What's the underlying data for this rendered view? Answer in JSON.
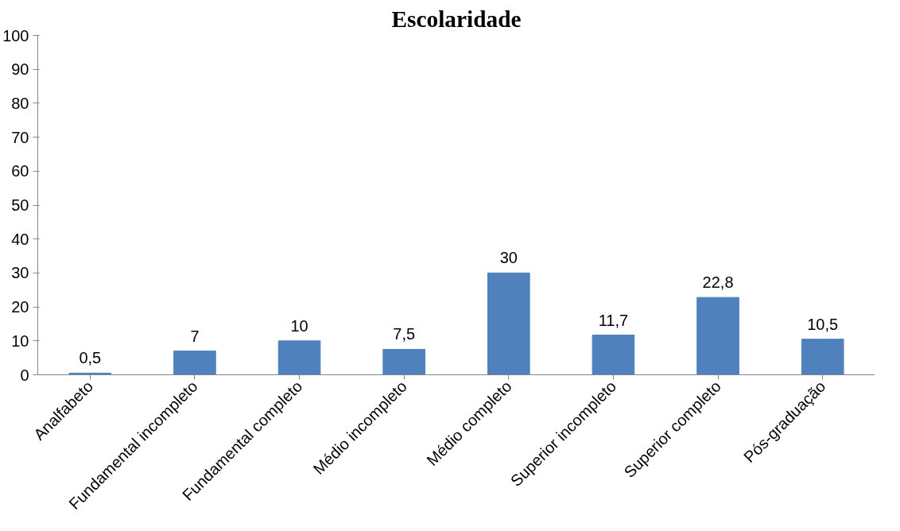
{
  "chart_data": {
    "type": "bar",
    "title": "Escolaridade",
    "categories": [
      "Analfabeto",
      "Fundamental incompleto",
      "Fundamental completo",
      "Médio incompleto",
      "Médio completo",
      "Superior incompleto",
      "Superior completo",
      "Pós-graduação"
    ],
    "values": [
      0.5,
      7,
      10,
      7.5,
      30,
      11.7,
      22.8,
      10.5
    ],
    "value_labels": [
      "0,5",
      "7",
      "10",
      "7,5",
      "30",
      "11,7",
      "22,8",
      "10,5"
    ],
    "color": "#4f81bd",
    "ylim": [
      0,
      100
    ],
    "yticks": [
      0,
      10,
      20,
      30,
      40,
      50,
      60,
      70,
      80,
      90,
      100
    ],
    "grid": false
  }
}
